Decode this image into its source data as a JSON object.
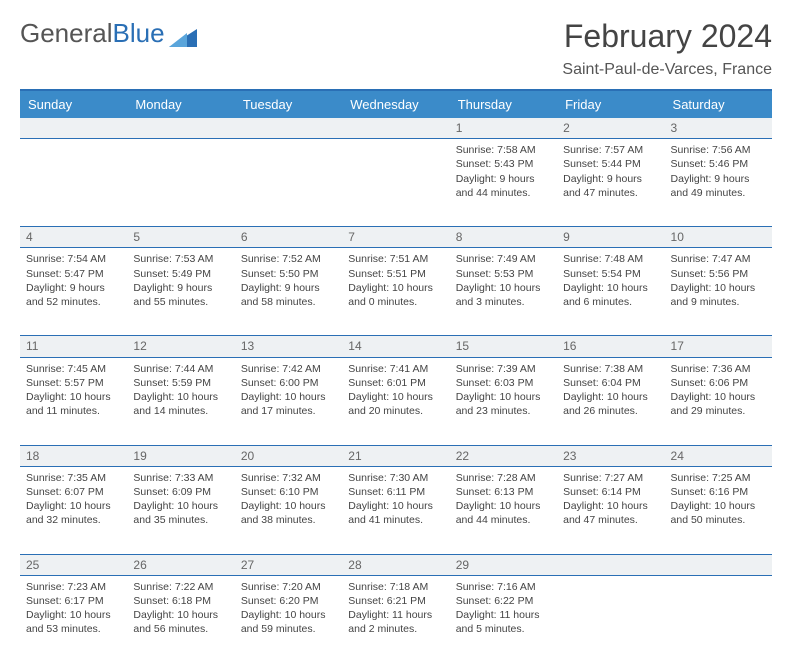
{
  "logo": {
    "text1": "General",
    "text2": "Blue"
  },
  "title": "February 2024",
  "subtitle": "Saint-Paul-de-Varces, France",
  "colors": {
    "header_bg": "#3b8bc9",
    "border": "#2a6fb5",
    "daynum_bg": "#eef1f3",
    "text": "#444444",
    "bg": "#ffffff"
  },
  "weekdays": [
    "Sunday",
    "Monday",
    "Tuesday",
    "Wednesday",
    "Thursday",
    "Friday",
    "Saturday"
  ],
  "weeks": [
    {
      "nums": [
        "",
        "",
        "",
        "",
        "1",
        "2",
        "3"
      ],
      "cells": [
        null,
        null,
        null,
        null,
        {
          "sunrise": "Sunrise: 7:58 AM",
          "sunset": "Sunset: 5:43 PM",
          "day1": "Daylight: 9 hours",
          "day2": "and 44 minutes."
        },
        {
          "sunrise": "Sunrise: 7:57 AM",
          "sunset": "Sunset: 5:44 PM",
          "day1": "Daylight: 9 hours",
          "day2": "and 47 minutes."
        },
        {
          "sunrise": "Sunrise: 7:56 AM",
          "sunset": "Sunset: 5:46 PM",
          "day1": "Daylight: 9 hours",
          "day2": "and 49 minutes."
        }
      ]
    },
    {
      "nums": [
        "4",
        "5",
        "6",
        "7",
        "8",
        "9",
        "10"
      ],
      "cells": [
        {
          "sunrise": "Sunrise: 7:54 AM",
          "sunset": "Sunset: 5:47 PM",
          "day1": "Daylight: 9 hours",
          "day2": "and 52 minutes."
        },
        {
          "sunrise": "Sunrise: 7:53 AM",
          "sunset": "Sunset: 5:49 PM",
          "day1": "Daylight: 9 hours",
          "day2": "and 55 minutes."
        },
        {
          "sunrise": "Sunrise: 7:52 AM",
          "sunset": "Sunset: 5:50 PM",
          "day1": "Daylight: 9 hours",
          "day2": "and 58 minutes."
        },
        {
          "sunrise": "Sunrise: 7:51 AM",
          "sunset": "Sunset: 5:51 PM",
          "day1": "Daylight: 10 hours",
          "day2": "and 0 minutes."
        },
        {
          "sunrise": "Sunrise: 7:49 AM",
          "sunset": "Sunset: 5:53 PM",
          "day1": "Daylight: 10 hours",
          "day2": "and 3 minutes."
        },
        {
          "sunrise": "Sunrise: 7:48 AM",
          "sunset": "Sunset: 5:54 PM",
          "day1": "Daylight: 10 hours",
          "day2": "and 6 minutes."
        },
        {
          "sunrise": "Sunrise: 7:47 AM",
          "sunset": "Sunset: 5:56 PM",
          "day1": "Daylight: 10 hours",
          "day2": "and 9 minutes."
        }
      ]
    },
    {
      "nums": [
        "11",
        "12",
        "13",
        "14",
        "15",
        "16",
        "17"
      ],
      "cells": [
        {
          "sunrise": "Sunrise: 7:45 AM",
          "sunset": "Sunset: 5:57 PM",
          "day1": "Daylight: 10 hours",
          "day2": "and 11 minutes."
        },
        {
          "sunrise": "Sunrise: 7:44 AM",
          "sunset": "Sunset: 5:59 PM",
          "day1": "Daylight: 10 hours",
          "day2": "and 14 minutes."
        },
        {
          "sunrise": "Sunrise: 7:42 AM",
          "sunset": "Sunset: 6:00 PM",
          "day1": "Daylight: 10 hours",
          "day2": "and 17 minutes."
        },
        {
          "sunrise": "Sunrise: 7:41 AM",
          "sunset": "Sunset: 6:01 PM",
          "day1": "Daylight: 10 hours",
          "day2": "and 20 minutes."
        },
        {
          "sunrise": "Sunrise: 7:39 AM",
          "sunset": "Sunset: 6:03 PM",
          "day1": "Daylight: 10 hours",
          "day2": "and 23 minutes."
        },
        {
          "sunrise": "Sunrise: 7:38 AM",
          "sunset": "Sunset: 6:04 PM",
          "day1": "Daylight: 10 hours",
          "day2": "and 26 minutes."
        },
        {
          "sunrise": "Sunrise: 7:36 AM",
          "sunset": "Sunset: 6:06 PM",
          "day1": "Daylight: 10 hours",
          "day2": "and 29 minutes."
        }
      ]
    },
    {
      "nums": [
        "18",
        "19",
        "20",
        "21",
        "22",
        "23",
        "24"
      ],
      "cells": [
        {
          "sunrise": "Sunrise: 7:35 AM",
          "sunset": "Sunset: 6:07 PM",
          "day1": "Daylight: 10 hours",
          "day2": "and 32 minutes."
        },
        {
          "sunrise": "Sunrise: 7:33 AM",
          "sunset": "Sunset: 6:09 PM",
          "day1": "Daylight: 10 hours",
          "day2": "and 35 minutes."
        },
        {
          "sunrise": "Sunrise: 7:32 AM",
          "sunset": "Sunset: 6:10 PM",
          "day1": "Daylight: 10 hours",
          "day2": "and 38 minutes."
        },
        {
          "sunrise": "Sunrise: 7:30 AM",
          "sunset": "Sunset: 6:11 PM",
          "day1": "Daylight: 10 hours",
          "day2": "and 41 minutes."
        },
        {
          "sunrise": "Sunrise: 7:28 AM",
          "sunset": "Sunset: 6:13 PM",
          "day1": "Daylight: 10 hours",
          "day2": "and 44 minutes."
        },
        {
          "sunrise": "Sunrise: 7:27 AM",
          "sunset": "Sunset: 6:14 PM",
          "day1": "Daylight: 10 hours",
          "day2": "and 47 minutes."
        },
        {
          "sunrise": "Sunrise: 7:25 AM",
          "sunset": "Sunset: 6:16 PM",
          "day1": "Daylight: 10 hours",
          "day2": "and 50 minutes."
        }
      ]
    },
    {
      "nums": [
        "25",
        "26",
        "27",
        "28",
        "29",
        "",
        ""
      ],
      "cells": [
        {
          "sunrise": "Sunrise: 7:23 AM",
          "sunset": "Sunset: 6:17 PM",
          "day1": "Daylight: 10 hours",
          "day2": "and 53 minutes."
        },
        {
          "sunrise": "Sunrise: 7:22 AM",
          "sunset": "Sunset: 6:18 PM",
          "day1": "Daylight: 10 hours",
          "day2": "and 56 minutes."
        },
        {
          "sunrise": "Sunrise: 7:20 AM",
          "sunset": "Sunset: 6:20 PM",
          "day1": "Daylight: 10 hours",
          "day2": "and 59 minutes."
        },
        {
          "sunrise": "Sunrise: 7:18 AM",
          "sunset": "Sunset: 6:21 PM",
          "day1": "Daylight: 11 hours",
          "day2": "and 2 minutes."
        },
        {
          "sunrise": "Sunrise: 7:16 AM",
          "sunset": "Sunset: 6:22 PM",
          "day1": "Daylight: 11 hours",
          "day2": "and 5 minutes."
        },
        null,
        null
      ]
    }
  ]
}
